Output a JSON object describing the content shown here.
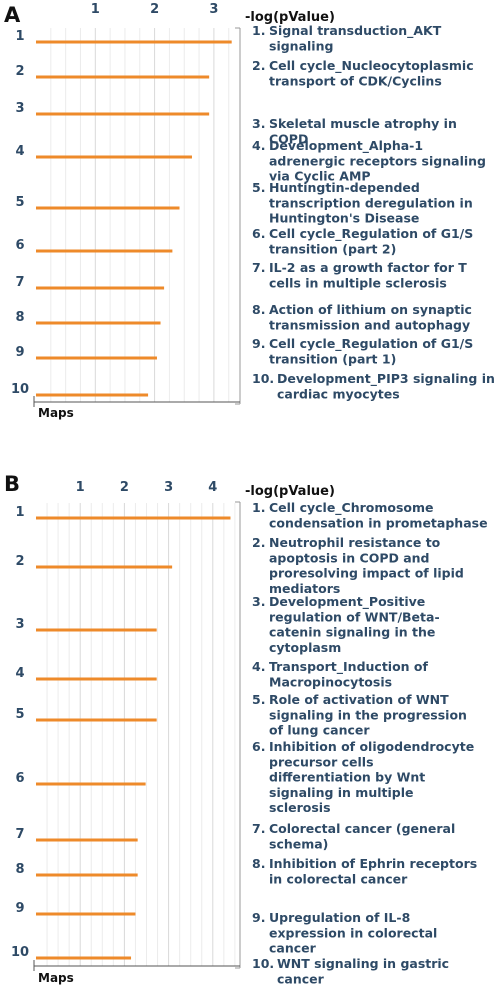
{
  "chart_data": [
    {
      "type": "bar",
      "panel_label": "A",
      "orientation": "horizontal",
      "xlabel": "-log(pValue)",
      "ylabel": "Maps",
      "xlim": [
        0,
        3.6
      ],
      "x_ticks": [
        "1",
        "2",
        "3"
      ],
      "grid": true,
      "bar_color": "#ee8a2a",
      "categories": [
        "1",
        "2",
        "3",
        "4",
        "5",
        "6",
        "7",
        "8",
        "9",
        "10"
      ],
      "values": [
        3.3,
        2.92,
        2.92,
        2.63,
        2.42,
        2.3,
        2.16,
        2.1,
        2.04,
        1.89
      ],
      "descriptions": [
        [
          "1.",
          "Signal transduction_AKT",
          "signaling"
        ],
        [
          "2.",
          "Cell cycle_Nucleocytoplasmic",
          "transport of CDK/Cyclins"
        ],
        [
          "3.",
          "Skeletal muscle atrophy in",
          "COPD"
        ],
        [
          "4.",
          "Development_Alpha-1",
          "adrenergic receptors signaling",
          "via Cyclic AMP"
        ],
        [
          "5.",
          "Huntingtin-depended",
          "transcription deregulation in",
          "Huntington's Disease"
        ],
        [
          "6.",
          "Cell cycle_Regulation of G1/S",
          "transition (part 2)"
        ],
        [
          "7.",
          "IL-2 as a growth factor for T",
          "cells in multiple sclerosis"
        ],
        [
          "8.",
          "Action of lithium on synaptic",
          "transmission and autophagy"
        ],
        [
          "9.",
          "Cell cycle_Regulation of G1/S",
          "transition (part 1)"
        ],
        [
          "10.",
          "Development_PIP3 signaling in",
          "cardiac myocytes"
        ]
      ]
    },
    {
      "type": "bar",
      "panel_label": "B",
      "orientation": "horizontal",
      "xlabel": "-log(pValue)",
      "ylabel": "Maps",
      "xlim": [
        0,
        4.7
      ],
      "x_ticks": [
        "1",
        "2",
        "3",
        "4"
      ],
      "grid": true,
      "bar_color": "#ee8a2a",
      "categories": [
        "1",
        "2",
        "3",
        "4",
        "5",
        "6",
        "7",
        "8",
        "9",
        "10"
      ],
      "values": [
        4.4,
        3.08,
        2.73,
        2.73,
        2.73,
        2.48,
        2.3,
        2.3,
        2.25,
        2.15
      ],
      "descriptions": [
        [
          "1.",
          "Cell cycle_Chromosome",
          "condensation in prometaphase"
        ],
        [
          "2.",
          "Neutrophil resistance to",
          "apoptosis in COPD and",
          "proresolving impact of lipid",
          "mediators"
        ],
        [
          "3.",
          "Development_Positive",
          "regulation of WNT/Beta-",
          "catenin signaling in the",
          "cytoplasm"
        ],
        [
          "4.",
          "Transport_Induction of",
          "Macropinocytosis"
        ],
        [
          "5.",
          "Role of activation of WNT",
          "signaling in the progression",
          "of lung cancer"
        ],
        [
          "6.",
          "Inhibition of oligodendrocyte",
          "precursor cells",
          "differentiation by Wnt",
          "signaling in multiple",
          "sclerosis"
        ],
        [
          "7.",
          "Colorectal cancer (general",
          "schema)"
        ],
        [
          "8.",
          "Inhibition of Ephrin receptors",
          "in colorectal cancer"
        ],
        [
          "9.",
          "Upregulation of IL-8",
          "expression in colorectal",
          "cancer"
        ],
        [
          "10.",
          "WNT signaling in gastric",
          "cancer"
        ]
      ]
    }
  ]
}
